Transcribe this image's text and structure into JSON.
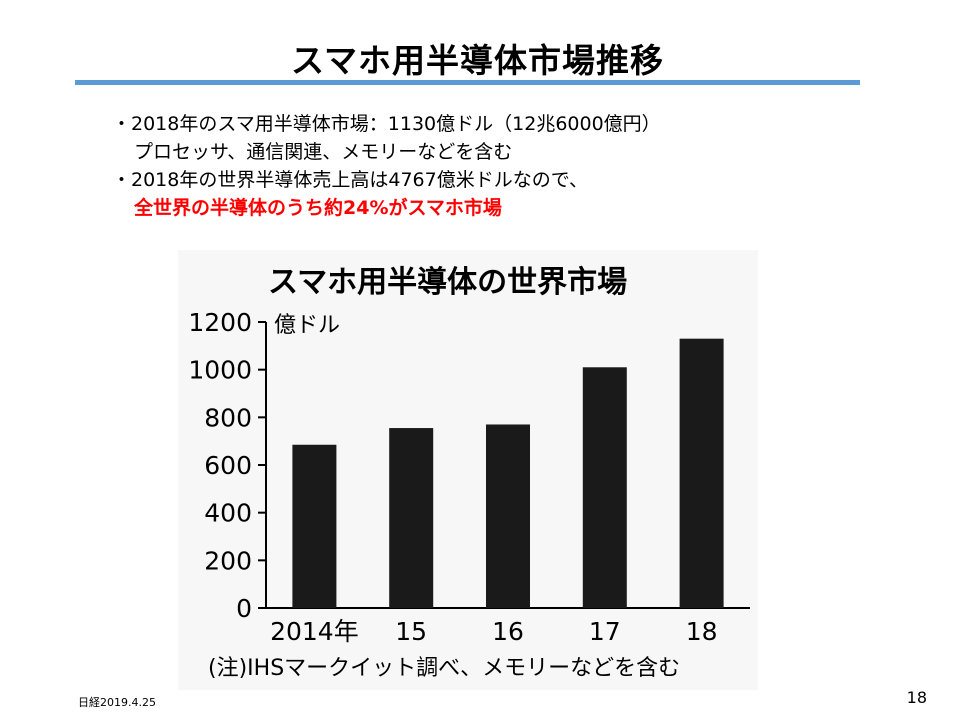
{
  "slide": {
    "title": "スマホ用半導体市場推移",
    "bullets": [
      "・2018年のスマ用半導体市場：1130億ドル（12兆6000億円）",
      "プロセッサ、通信関連、メモリーなどを含む",
      "・2018年の世界半導体売上高は4767億米ドルなので、",
      "全世界の半導体のうち約24%がスマホ市場"
    ],
    "source": "日経2019.4.25",
    "page_number": "18",
    "colors": {
      "rule": "#5b9bd5",
      "highlight": "#ff0000",
      "bar": "#1a1a1a"
    }
  },
  "chart_data": {
    "type": "bar",
    "title": "スマホ用半導体の世界市場",
    "ylabel": "億ドル",
    "categories": [
      "2014年",
      "15",
      "16",
      "17",
      "18"
    ],
    "values": [
      685,
      755,
      770,
      1010,
      1130
    ],
    "ylim": [
      0,
      1200
    ],
    "yticks": [
      0,
      200,
      400,
      600,
      800,
      1000,
      1200
    ],
    "ytick_labels": [
      "0",
      "200",
      "400",
      "600",
      "800",
      "1000",
      "1200"
    ],
    "note": "(注)IHSマークイット調べ、メモリーなどを含む",
    "grid": false,
    "legend": "none"
  }
}
